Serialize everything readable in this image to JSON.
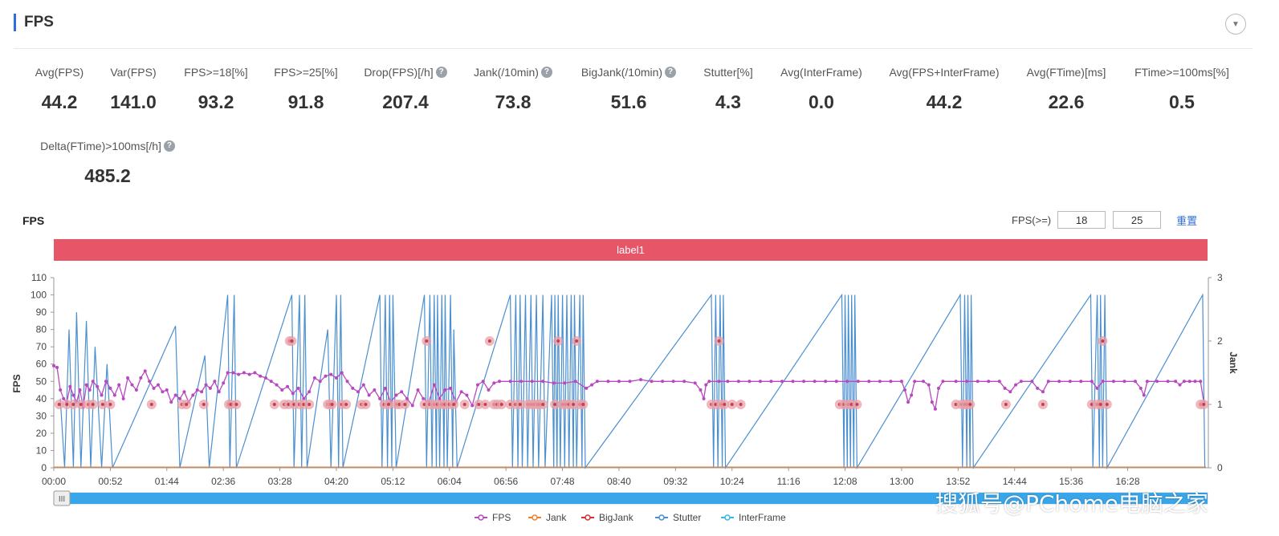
{
  "header": {
    "title": "FPS",
    "collapse_icon": "chevron-down-icon"
  },
  "metrics": [
    {
      "label": "Avg(FPS)",
      "value": "44.2",
      "help": false
    },
    {
      "label": "Var(FPS)",
      "value": "141.0",
      "help": false
    },
    {
      "label": "FPS>=18[%]",
      "value": "93.2",
      "help": false
    },
    {
      "label": "FPS>=25[%]",
      "value": "91.8",
      "help": false
    },
    {
      "label": "Drop(FPS)[/h]",
      "value": "207.4",
      "help": true
    },
    {
      "label": "Jank(/10min)",
      "value": "73.8",
      "help": true
    },
    {
      "label": "BigJank(/10min)",
      "value": "51.6",
      "help": true
    },
    {
      "label": "Stutter[%]",
      "value": "4.3",
      "help": false
    },
    {
      "label": "Avg(InterFrame)",
      "value": "0.0",
      "help": false
    },
    {
      "label": "Avg(FPS+InterFrame)",
      "value": "44.2",
      "help": false
    },
    {
      "label": "Avg(FTime)[ms]",
      "value": "22.6",
      "help": false
    },
    {
      "label": "FTime>=100ms[%]",
      "value": "0.5",
      "help": false
    },
    {
      "label": "Delta(FTime)>100ms[/h]",
      "value": "485.2",
      "help": true
    }
  ],
  "chart_header": {
    "title": "FPS",
    "threshold_label": "FPS(>=)",
    "threshold_1": "18",
    "threshold_2": "25",
    "reset_label": "重置"
  },
  "label_band": {
    "text": "label1"
  },
  "watermark": "搜狐号@PChome电脑之家",
  "chart_data": {
    "type": "line",
    "ylabel": "FPS",
    "y2label": "Jank",
    "ylim": [
      0,
      110
    ],
    "y2lim": [
      0,
      3
    ],
    "yticks": [
      0,
      10,
      20,
      30,
      40,
      50,
      60,
      70,
      80,
      90,
      100,
      110
    ],
    "y2ticks": [
      0,
      1,
      2,
      3
    ],
    "xticks": [
      "00:00",
      "00:52",
      "01:44",
      "02:36",
      "03:28",
      "04:20",
      "05:12",
      "06:04",
      "06:56",
      "07:48",
      "08:40",
      "09:32",
      "10:24",
      "11:16",
      "12:08",
      "13:00",
      "13:52",
      "14:44",
      "15:36",
      "16:28"
    ],
    "xrange_seconds": [
      0,
      1060
    ],
    "legend": [
      "FPS",
      "Jank",
      "BigJank",
      "Stutter",
      "InterFrame"
    ],
    "legend_position": "bottom",
    "colors": {
      "FPS": "#b848c0",
      "Jank": "#f07f2d",
      "BigJank": "#d83030",
      "Stutter": "#4a8fd0",
      "InterFrame": "#36b8e0",
      "jank_marker": "#e8a0a8"
    },
    "fps_series_seconds_values": [
      [
        0,
        59
      ],
      [
        3,
        58
      ],
      [
        6,
        45
      ],
      [
        9,
        40
      ],
      [
        12,
        38
      ],
      [
        15,
        47
      ],
      [
        18,
        42
      ],
      [
        21,
        38
      ],
      [
        24,
        45
      ],
      [
        27,
        35
      ],
      [
        30,
        48
      ],
      [
        33,
        45
      ],
      [
        36,
        50
      ],
      [
        40,
        47
      ],
      [
        44,
        42
      ],
      [
        48,
        50
      ],
      [
        52,
        46
      ],
      [
        56,
        42
      ],
      [
        60,
        48
      ],
      [
        64,
        40
      ],
      [
        68,
        52
      ],
      [
        72,
        48
      ],
      [
        76,
        45
      ],
      [
        80,
        52
      ],
      [
        84,
        56
      ],
      [
        88,
        50
      ],
      [
        92,
        46
      ],
      [
        96,
        48
      ],
      [
        100,
        44
      ],
      [
        104,
        45
      ],
      [
        108,
        38
      ],
      [
        112,
        42
      ],
      [
        116,
        40
      ],
      [
        120,
        44
      ],
      [
        124,
        38
      ],
      [
        128,
        42
      ],
      [
        132,
        45
      ],
      [
        136,
        44
      ],
      [
        140,
        48
      ],
      [
        144,
        46
      ],
      [
        148,
        50
      ],
      [
        152,
        44
      ],
      [
        156,
        49
      ],
      [
        160,
        55
      ],
      [
        165,
        55
      ],
      [
        170,
        54
      ],
      [
        175,
        55
      ],
      [
        180,
        54
      ],
      [
        185,
        55
      ],
      [
        190,
        53
      ],
      [
        195,
        52
      ],
      [
        200,
        50
      ],
      [
        205,
        48
      ],
      [
        210,
        45
      ],
      [
        215,
        47
      ],
      [
        220,
        43
      ],
      [
        225,
        46
      ],
      [
        230,
        40
      ],
      [
        235,
        44
      ],
      [
        240,
        52
      ],
      [
        245,
        50
      ],
      [
        250,
        53
      ],
      [
        255,
        54
      ],
      [
        260,
        52
      ],
      [
        265,
        55
      ],
      [
        270,
        50
      ],
      [
        275,
        46
      ],
      [
        280,
        44
      ],
      [
        285,
        48
      ],
      [
        290,
        42
      ],
      [
        295,
        45
      ],
      [
        300,
        40
      ],
      [
        305,
        46
      ],
      [
        310,
        38
      ],
      [
        315,
        42
      ],
      [
        320,
        44
      ],
      [
        325,
        40
      ],
      [
        330,
        36
      ],
      [
        335,
        45
      ],
      [
        340,
        40
      ],
      [
        345,
        38
      ],
      [
        350,
        48
      ],
      [
        355,
        40
      ],
      [
        360,
        45
      ],
      [
        365,
        46
      ],
      [
        370,
        38
      ],
      [
        375,
        44
      ],
      [
        380,
        42
      ],
      [
        385,
        36
      ],
      [
        390,
        48
      ],
      [
        395,
        50
      ],
      [
        400,
        45
      ],
      [
        405,
        49
      ],
      [
        410,
        50
      ],
      [
        420,
        50
      ],
      [
        430,
        50
      ],
      [
        440,
        50
      ],
      [
        450,
        50
      ],
      [
        460,
        49
      ],
      [
        470,
        49
      ],
      [
        480,
        50
      ],
      [
        490,
        46
      ],
      [
        495,
        48
      ],
      [
        500,
        50
      ],
      [
        510,
        50
      ],
      [
        520,
        50
      ],
      [
        530,
        50
      ],
      [
        540,
        51
      ],
      [
        550,
        50
      ],
      [
        560,
        50
      ],
      [
        570,
        50
      ],
      [
        580,
        50
      ],
      [
        590,
        49
      ],
      [
        595,
        45
      ],
      [
        598,
        40
      ],
      [
        600,
        48
      ],
      [
        603,
        50
      ],
      [
        612,
        50
      ],
      [
        620,
        50
      ],
      [
        630,
        50
      ],
      [
        640,
        50
      ],
      [
        650,
        50
      ],
      [
        660,
        50
      ],
      [
        670,
        50
      ],
      [
        680,
        50
      ],
      [
        690,
        50
      ],
      [
        700,
        50
      ],
      [
        710,
        50
      ],
      [
        720,
        50
      ],
      [
        730,
        50
      ],
      [
        740,
        50
      ],
      [
        750,
        50
      ],
      [
        760,
        50
      ],
      [
        770,
        50
      ],
      [
        780,
        50
      ],
      [
        783,
        45
      ],
      [
        786,
        38
      ],
      [
        789,
        42
      ],
      [
        792,
        50
      ],
      [
        800,
        50
      ],
      [
        805,
        48
      ],
      [
        808,
        38
      ],
      [
        811,
        34
      ],
      [
        814,
        46
      ],
      [
        818,
        50
      ],
      [
        830,
        50
      ],
      [
        840,
        50
      ],
      [
        850,
        50
      ],
      [
        860,
        50
      ],
      [
        870,
        50
      ],
      [
        875,
        46
      ],
      [
        880,
        44
      ],
      [
        885,
        48
      ],
      [
        890,
        50
      ],
      [
        900,
        50
      ],
      [
        905,
        46
      ],
      [
        910,
        44
      ],
      [
        915,
        50
      ],
      [
        925,
        50
      ],
      [
        935,
        50
      ],
      [
        945,
        50
      ],
      [
        955,
        50
      ],
      [
        960,
        46
      ],
      [
        965,
        50
      ],
      [
        975,
        50
      ],
      [
        985,
        50
      ],
      [
        995,
        50
      ],
      [
        1000,
        46
      ],
      [
        1003,
        42
      ],
      [
        1006,
        50
      ],
      [
        1015,
        50
      ],
      [
        1025,
        50
      ],
      [
        1032,
        50
      ],
      [
        1036,
        48
      ],
      [
        1040,
        50
      ],
      [
        1045,
        50
      ],
      [
        1050,
        50
      ],
      [
        1055,
        50
      ],
      [
        1058,
        38
      ]
    ],
    "jank_markers_seconds_level": [
      [
        5,
        1
      ],
      [
        12,
        1
      ],
      [
        18,
        1
      ],
      [
        25,
        1
      ],
      [
        32,
        1
      ],
      [
        36,
        1
      ],
      [
        45,
        1
      ],
      [
        52,
        1
      ],
      [
        90,
        1
      ],
      [
        118,
        1
      ],
      [
        122,
        1
      ],
      [
        138,
        1
      ],
      [
        161,
        1
      ],
      [
        163,
        1
      ],
      [
        168,
        1
      ],
      [
        203,
        1
      ],
      [
        212,
        1
      ],
      [
        216,
        1
      ],
      [
        217,
        2
      ],
      [
        219,
        2
      ],
      [
        221,
        1
      ],
      [
        226,
        1
      ],
      [
        230,
        1
      ],
      [
        235,
        1
      ],
      [
        252,
        1
      ],
      [
        254,
        1
      ],
      [
        256,
        1
      ],
      [
        265,
        1
      ],
      [
        269,
        1
      ],
      [
        283,
        1
      ],
      [
        287,
        1
      ],
      [
        304,
        1
      ],
      [
        308,
        1
      ],
      [
        315,
        1
      ],
      [
        318,
        1
      ],
      [
        323,
        1
      ],
      [
        341,
        1
      ],
      [
        343,
        2
      ],
      [
        346,
        1
      ],
      [
        350,
        1
      ],
      [
        353,
        1
      ],
      [
        357,
        1
      ],
      [
        360,
        1
      ],
      [
        364,
        1
      ],
      [
        368,
        1
      ],
      [
        378,
        1
      ],
      [
        391,
        1
      ],
      [
        397,
        1
      ],
      [
        401,
        2
      ],
      [
        405,
        1
      ],
      [
        408,
        1
      ],
      [
        412,
        1
      ],
      [
        420,
        1
      ],
      [
        425,
        1
      ],
      [
        429,
        1
      ],
      [
        436,
        1
      ],
      [
        439,
        1
      ],
      [
        442,
        1
      ],
      [
        445,
        1
      ],
      [
        447,
        1
      ],
      [
        450,
        1
      ],
      [
        461,
        1
      ],
      [
        464,
        2
      ],
      [
        468,
        1
      ],
      [
        471,
        1
      ],
      [
        474,
        1
      ],
      [
        478,
        1
      ],
      [
        481,
        2
      ],
      [
        484,
        1
      ],
      [
        487,
        1
      ],
      [
        605,
        1
      ],
      [
        609,
        1
      ],
      [
        612,
        2
      ],
      [
        614,
        1
      ],
      [
        617,
        1
      ],
      [
        624,
        1
      ],
      [
        632,
        1
      ],
      [
        723,
        1
      ],
      [
        727,
        1
      ],
      [
        731,
        1
      ],
      [
        734,
        1
      ],
      [
        739,
        1
      ],
      [
        830,
        1
      ],
      [
        835,
        1
      ],
      [
        838,
        1
      ],
      [
        840,
        1
      ],
      [
        843,
        1
      ],
      [
        876,
        1
      ],
      [
        910,
        1
      ],
      [
        955,
        1
      ],
      [
        960,
        1
      ],
      [
        963,
        1
      ],
      [
        965,
        2
      ],
      [
        969,
        1
      ],
      [
        1055,
        1
      ],
      [
        1058,
        1
      ]
    ],
    "stutter_spikes_seconds": [
      [
        6,
        40
      ],
      [
        10,
        0
      ],
      [
        14,
        80
      ],
      [
        18,
        0
      ],
      [
        21,
        90
      ],
      [
        25,
        0
      ],
      [
        30,
        85
      ],
      [
        34,
        0
      ],
      [
        38,
        70
      ],
      [
        44,
        0
      ],
      [
        49,
        60
      ],
      [
        54,
        0
      ],
      [
        112,
        82
      ],
      [
        116,
        0
      ],
      [
        139,
        65
      ],
      [
        143,
        0
      ],
      [
        160,
        100
      ],
      [
        162,
        0
      ],
      [
        166,
        100
      ],
      [
        168,
        0
      ],
      [
        219,
        100
      ],
      [
        221,
        0
      ],
      [
        226,
        100
      ],
      [
        228,
        0
      ],
      [
        231,
        100
      ],
      [
        233,
        0
      ],
      [
        252,
        80
      ],
      [
        255,
        0
      ],
      [
        260,
        100
      ],
      [
        262,
        0
      ],
      [
        264,
        100
      ],
      [
        266,
        0
      ],
      [
        300,
        100
      ],
      [
        302,
        0
      ],
      [
        305,
        100
      ],
      [
        307,
        0
      ],
      [
        309,
        100
      ],
      [
        311,
        0
      ],
      [
        312,
        100
      ],
      [
        315,
        0
      ],
      [
        341,
        100
      ],
      [
        343,
        0
      ],
      [
        346,
        100
      ],
      [
        348,
        0
      ],
      [
        350,
        100
      ],
      [
        352,
        0
      ],
      [
        353,
        100
      ],
      [
        355,
        0
      ],
      [
        357,
        100
      ],
      [
        359,
        0
      ],
      [
        360,
        100
      ],
      [
        362,
        0
      ],
      [
        365,
        100
      ],
      [
        367,
        0
      ],
      [
        368,
        80
      ],
      [
        371,
        0
      ],
      [
        420,
        100
      ],
      [
        422,
        0
      ],
      [
        425,
        100
      ],
      [
        427,
        0
      ],
      [
        429,
        100
      ],
      [
        431,
        0
      ],
      [
        434,
        100
      ],
      [
        436,
        0
      ],
      [
        439,
        100
      ],
      [
        441,
        0
      ],
      [
        444,
        100
      ],
      [
        446,
        0
      ],
      [
        450,
        100
      ],
      [
        452,
        0
      ],
      [
        458,
        100
      ],
      [
        460,
        0
      ],
      [
        461,
        100
      ],
      [
        463,
        0
      ],
      [
        464,
        100
      ],
      [
        466,
        0
      ],
      [
        468,
        100
      ],
      [
        470,
        0
      ],
      [
        472,
        100
      ],
      [
        474,
        0
      ],
      [
        476,
        100
      ],
      [
        478,
        0
      ],
      [
        479,
        100
      ],
      [
        481,
        0
      ],
      [
        484,
        100
      ],
      [
        486,
        0
      ],
      [
        487,
        100
      ],
      [
        489,
        0
      ],
      [
        605,
        100
      ],
      [
        607,
        0
      ],
      [
        609,
        100
      ],
      [
        611,
        0
      ],
      [
        613,
        100
      ],
      [
        615,
        0
      ],
      [
        616,
        100
      ],
      [
        618,
        0
      ],
      [
        725,
        100
      ],
      [
        727,
        0
      ],
      [
        728,
        100
      ],
      [
        730,
        0
      ],
      [
        731,
        100
      ],
      [
        733,
        0
      ],
      [
        734,
        100
      ],
      [
        736,
        0
      ],
      [
        737,
        100
      ],
      [
        739,
        0
      ],
      [
        834,
        100
      ],
      [
        836,
        0
      ],
      [
        838,
        100
      ],
      [
        840,
        0
      ],
      [
        841,
        100
      ],
      [
        843,
        0
      ],
      [
        844,
        100
      ],
      [
        846,
        0
      ],
      [
        954,
        100
      ],
      [
        956,
        0
      ],
      [
        960,
        100
      ],
      [
        962,
        0
      ],
      [
        963,
        100
      ],
      [
        965,
        0
      ],
      [
        967,
        100
      ],
      [
        969,
        0
      ],
      [
        1057,
        100
      ],
      [
        1059,
        0
      ]
    ]
  }
}
